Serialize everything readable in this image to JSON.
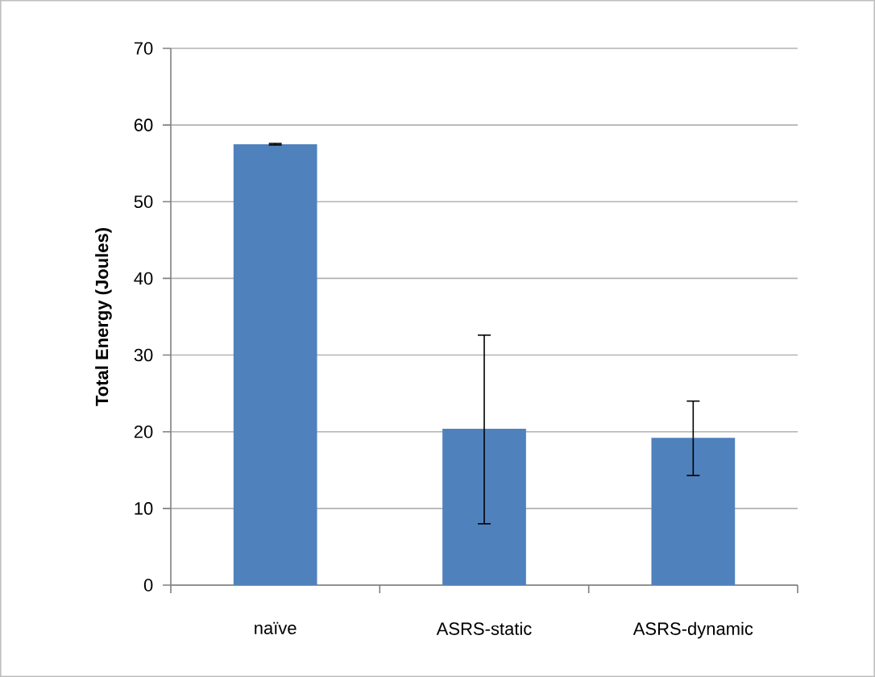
{
  "chart_data": {
    "type": "bar",
    "ylabel": "Total Energy (Joules)",
    "categories": [
      "naïve",
      "ASRS-static",
      "ASRS-dynamic"
    ],
    "values": [
      57.5,
      20.4,
      19.2
    ],
    "errors": [
      0.1,
      [
        8.0,
        32.6
      ],
      [
        14.3,
        24.0
      ]
    ],
    "color": "#4f81bd",
    "ylim": [
      0,
      70
    ],
    "yticks": [
      0,
      10,
      20,
      30,
      40,
      50,
      60,
      70
    ],
    "grid": "y"
  }
}
